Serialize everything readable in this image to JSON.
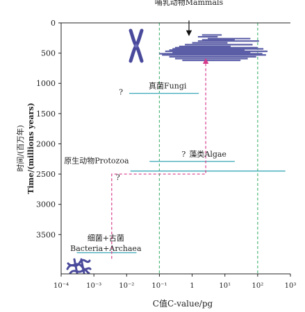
{
  "chart_data": {
    "type": "range",
    "xlabel": "C值C-value/pg",
    "ylabel_cn": "时间/(百万年)",
    "ylabel_en": "Time/(millions years)",
    "x_scale": "log10",
    "xlim": [
      0.0001,
      1000
    ],
    "x_ticks": [
      {
        "value": 0.0001,
        "label": "10⁻⁴"
      },
      {
        "value": 0.001,
        "label": "10⁻³"
      },
      {
        "value": 0.01,
        "label": "10⁻²"
      },
      {
        "value": 0.1,
        "label": "10⁻¹"
      },
      {
        "value": 1,
        "label": "1"
      },
      {
        "value": 10,
        "label": "10¹"
      },
      {
        "value": 100,
        "label": "10²"
      },
      {
        "value": 1000,
        "label": "10³"
      }
    ],
    "ylim": [
      0,
      4150
    ],
    "y_reversed": true,
    "y_ticks": [
      0,
      500,
      1000,
      1500,
      2000,
      2500,
      3000,
      3500
    ],
    "reference_lines_x": [
      0.1,
      100
    ],
    "series": [
      {
        "name": "哺乳动物Mammals",
        "color": "#5b5ea6",
        "bars": [
          {
            "time": 200,
            "xmin": 2.0,
            "xmax": 8.0
          },
          {
            "time": 230,
            "xmin": 1.5,
            "xmax": 6.0
          },
          {
            "time": 260,
            "xmin": 3.0,
            "xmax": 60.0
          },
          {
            "time": 280,
            "xmin": 2.0,
            "xmax": 20.0
          },
          {
            "time": 300,
            "xmin": 1.5,
            "xmax": 110.0
          },
          {
            "time": 330,
            "xmin": 1.0,
            "xmax": 12.0
          },
          {
            "time": 360,
            "xmin": 0.6,
            "xmax": 70.0
          },
          {
            "time": 390,
            "xmin": 0.4,
            "xmax": 15.0
          },
          {
            "time": 410,
            "xmin": 0.3,
            "xmax": 100.0
          },
          {
            "time": 430,
            "xmin": 0.25,
            "xmax": 150.0
          },
          {
            "time": 450,
            "xmin": 0.2,
            "xmax": 40.0
          },
          {
            "time": 470,
            "xmin": 0.15,
            "xmax": 200.0
          },
          {
            "time": 490,
            "xmin": 0.25,
            "xmax": 60.0
          },
          {
            "time": 510,
            "xmin": 0.1,
            "xmax": 140.0
          },
          {
            "time": 530,
            "xmin": 0.12,
            "xmax": 180.0
          },
          {
            "time": 560,
            "xmin": 0.2,
            "xmax": 90.0
          },
          {
            "time": 590,
            "xmin": 0.3,
            "xmax": 50.0
          },
          {
            "time": 620,
            "xmin": 0.5,
            "xmax": 30.0
          }
        ]
      },
      {
        "name": "真菌Fungi",
        "color": "#3aa8b8",
        "query": "?",
        "bars": [
          {
            "time": 1165,
            "xmin": 0.012,
            "xmax": 1.6
          }
        ]
      },
      {
        "name": "藻类Algae",
        "color": "#3aa8b8",
        "query": "?",
        "bars": [
          {
            "time": 2290,
            "xmin": 0.05,
            "xmax": 20.0
          }
        ]
      },
      {
        "name": "原生动物Protozoa",
        "color": "#3aa8b8",
        "query": "?",
        "bars": [
          {
            "time": 2450,
            "xmin": 0.013,
            "xmax": 700.0
          }
        ]
      },
      {
        "name": "细菌+古菌\nBacteria+Archaea",
        "color": "#3aa8b8",
        "bars": [
          {
            "time": 3800,
            "xmin": 0.0003,
            "xmax": 0.02
          }
        ]
      }
    ],
    "arrows": [
      {
        "label": "mammals-pointer",
        "x": 0.8,
        "from_time": -40,
        "to_time": 200,
        "color": "#111111",
        "style": "solid"
      },
      {
        "label": "evolution-path",
        "color": "#d63a8a",
        "style": "dashed",
        "points": [
          {
            "x": 0.0035,
            "time": 3900
          },
          {
            "x": 0.0035,
            "time": 2500
          },
          {
            "x": 2.6,
            "time": 2500
          },
          {
            "x": 2.6,
            "time": 600
          }
        ]
      }
    ]
  }
}
